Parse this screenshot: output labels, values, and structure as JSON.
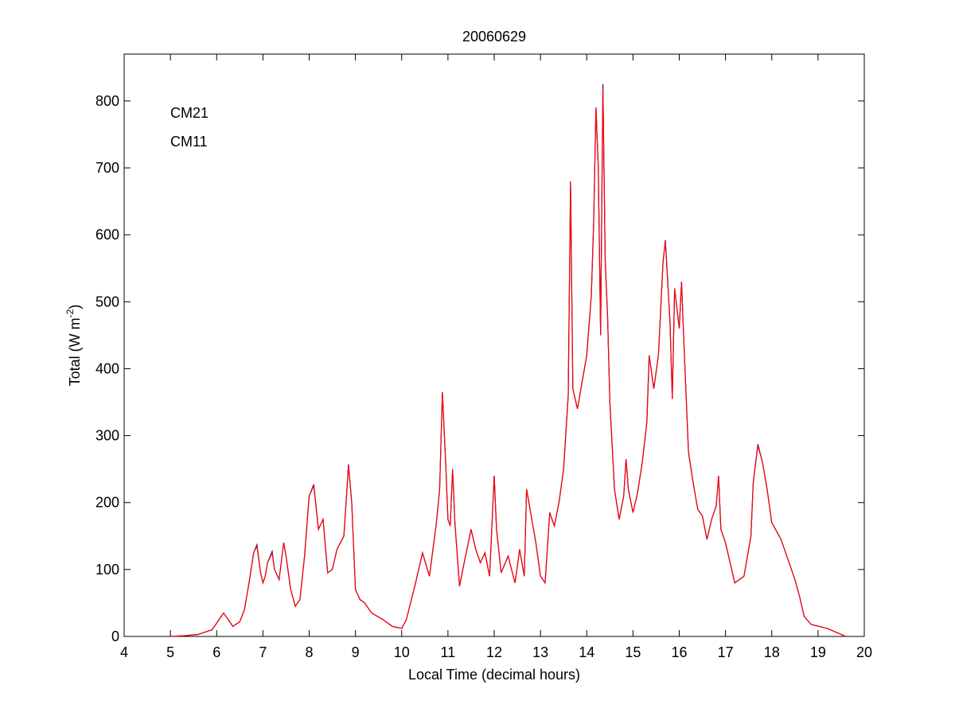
{
  "chart_data": {
    "type": "line",
    "title": "20060629",
    "xlabel": "Local Time (decimal hours)",
    "ylabel": {
      "text": "Total (W m",
      "superscript": "-2",
      "suffix": ")"
    },
    "legend": "upper left",
    "grid": false,
    "xlim": [
      4,
      20
    ],
    "xticks": [
      4,
      5,
      6,
      7,
      8,
      9,
      10,
      11,
      12,
      13,
      14,
      15,
      16,
      17,
      18,
      19,
      20
    ],
    "ylim": [
      0,
      870
    ],
    "yticks": [
      0,
      100,
      200,
      300,
      400,
      500,
      600,
      700,
      800
    ],
    "x": [
      5,
      5.3,
      5.6,
      5.9,
      6.1,
      6.15,
      6.25,
      6.35,
      6.5,
      6.6,
      6.7,
      6.8,
      6.87,
      6.95,
      7,
      7.05,
      7.1,
      7.2,
      7.25,
      7.35,
      7.45,
      7.5,
      7.6,
      7.7,
      7.8,
      7.9,
      8,
      8.1,
      8.2,
      8.3,
      8.4,
      8.5,
      8.6,
      8.75,
      8.85,
      8.92,
      9,
      9.1,
      9.2,
      9.35,
      9.6,
      9.8,
      10,
      10.1,
      10.3,
      10.45,
      10.6,
      10.75,
      10.82,
      10.88,
      10.95,
      11,
      11.05,
      11.1,
      11.15,
      11.25,
      11.35,
      11.5,
      11.6,
      11.7,
      11.8,
      11.9,
      12,
      12.05,
      12.15,
      12.3,
      12.45,
      12.55,
      12.65,
      12.7,
      12.8,
      12.9,
      13,
      13.1,
      13.2,
      13.3,
      13.4,
      13.5,
      13.6,
      13.65,
      13.7,
      13.8,
      13.9,
      14,
      14.1,
      14.15,
      14.2,
      14.25,
      14.3,
      14.35,
      14.4,
      14.45,
      14.5,
      14.6,
      14.7,
      14.8,
      14.85,
      14.9,
      15,
      15.1,
      15.2,
      15.3,
      15.35,
      15.45,
      15.55,
      15.65,
      15.7,
      15.8,
      15.85,
      15.9,
      16,
      16.05,
      16.1,
      16.2,
      16.3,
      16.4,
      16.5,
      16.6,
      16.7,
      16.8,
      16.85,
      16.9,
      17,
      17.2,
      17.4,
      17.55,
      17.6,
      17.7,
      17.8,
      17.9,
      18,
      18.2,
      18.35,
      18.5,
      18.6,
      18.7,
      18.85,
      19.2,
      19.5,
      19.6
    ],
    "series": [
      {
        "name": "CM21",
        "color": "#0000aa",
        "values": [
          0,
          1,
          3,
          10,
          30,
          35,
          25,
          15,
          22,
          40,
          80,
          125,
          137,
          95,
          80,
          90,
          110,
          127,
          100,
          85,
          140,
          120,
          70,
          45,
          55,
          120,
          210,
          227,
          160,
          175,
          95,
          100,
          130,
          150,
          257,
          200,
          70,
          55,
          50,
          35,
          25,
          15,
          12,
          25,
          80,
          125,
          90,
          170,
          220,
          365,
          260,
          175,
          165,
          250,
          170,
          75,
          110,
          160,
          130,
          110,
          125,
          90,
          240,
          160,
          95,
          120,
          80,
          130,
          90,
          220,
          180,
          140,
          90,
          80,
          185,
          165,
          200,
          250,
          360,
          680,
          370,
          340,
          380,
          420,
          510,
          620,
          790,
          700,
          450,
          825,
          560,
          480,
          350,
          220,
          175,
          210,
          265,
          220,
          185,
          215,
          260,
          320,
          420,
          370,
          420,
          560,
          592,
          470,
          355,
          520,
          460,
          530,
          440,
          275,
          230,
          190,
          180,
          145,
          175,
          195,
          240,
          160,
          140,
          80,
          90,
          150,
          230,
          287,
          260,
          220,
          170,
          145,
          115,
          85,
          60,
          30,
          18,
          12,
          3,
          0
        ]
      },
      {
        "name": "CM11",
        "color": "#ff0000",
        "values": [
          0,
          1,
          3,
          10,
          30,
          35,
          25,
          15,
          22,
          40,
          80,
          125,
          135,
          95,
          80,
          90,
          110,
          125,
          100,
          85,
          140,
          120,
          70,
          45,
          55,
          120,
          210,
          225,
          160,
          175,
          95,
          100,
          130,
          150,
          255,
          200,
          70,
          55,
          50,
          35,
          25,
          15,
          12,
          25,
          80,
          125,
          90,
          170,
          220,
          365,
          260,
          175,
          165,
          250,
          170,
          75,
          110,
          160,
          130,
          110,
          125,
          90,
          240,
          160,
          95,
          120,
          80,
          130,
          90,
          220,
          180,
          140,
          90,
          80,
          185,
          165,
          200,
          250,
          360,
          680,
          370,
          340,
          380,
          420,
          510,
          620,
          790,
          700,
          450,
          820,
          560,
          480,
          350,
          220,
          175,
          210,
          265,
          220,
          185,
          215,
          260,
          320,
          420,
          370,
          420,
          560,
          590,
          470,
          355,
          520,
          460,
          530,
          440,
          275,
          230,
          190,
          180,
          145,
          175,
          195,
          240,
          160,
          140,
          80,
          90,
          150,
          230,
          285,
          260,
          220,
          170,
          145,
          115,
          85,
          60,
          30,
          18,
          12,
          3,
          0
        ]
      }
    ]
  }
}
